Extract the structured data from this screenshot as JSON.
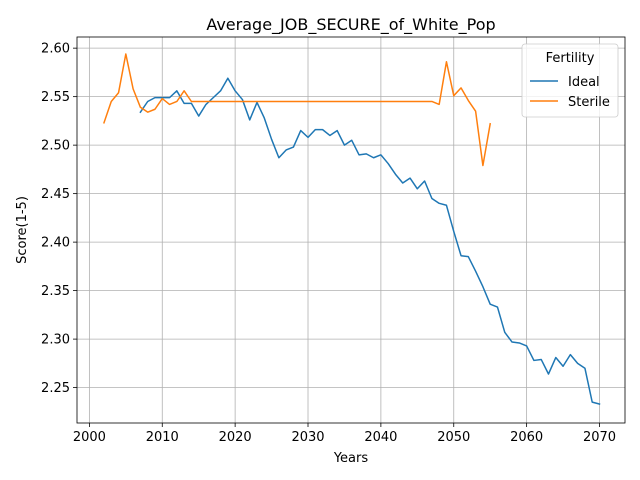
{
  "chart_data": {
    "type": "line",
    "title": "Average_JOB_SECURE_of_White_Pop",
    "xlabel": "Years",
    "ylabel": "Score(1-5)",
    "xlim": [
      1998.3,
      2073.5
    ],
    "ylim": [
      2.2135,
      2.6115
    ],
    "xticks": [
      2000,
      2010,
      2020,
      2030,
      2040,
      2050,
      2060,
      2070
    ],
    "yticks": [
      2.25,
      2.3,
      2.35,
      2.4,
      2.45,
      2.5,
      2.55,
      2.6
    ],
    "xtick_labels": [
      "2000",
      "2010",
      "2020",
      "2030",
      "2040",
      "2050",
      "2060",
      "2070"
    ],
    "ytick_labels": [
      "2.25",
      "2.30",
      "2.35",
      "2.40",
      "2.45",
      "2.50",
      "2.55",
      "2.60"
    ],
    "grid": true,
    "legend": {
      "title": "Fertility",
      "placement": "top-right"
    },
    "series": [
      {
        "name": "Ideal",
        "color": "#1f77b4",
        "x": [
          2007,
          2008,
          2009,
          2010,
          2011,
          2012,
          2013,
          2014,
          2015,
          2016,
          2017,
          2018,
          2019,
          2020,
          2021,
          2022,
          2023,
          2024,
          2025,
          2026,
          2027,
          2028,
          2029,
          2030,
          2031,
          2032,
          2033,
          2034,
          2035,
          2036,
          2037,
          2038,
          2039,
          2040,
          2041,
          2042,
          2043,
          2044,
          2045,
          2046,
          2047,
          2048,
          2049,
          2050,
          2051,
          2052,
          2053,
          2054,
          2055,
          2056,
          2057,
          2058,
          2059,
          2060,
          2061,
          2062,
          2063,
          2064,
          2065,
          2066,
          2067,
          2068,
          2069,
          2070
        ],
        "y": [
          2.534,
          2.545,
          2.549,
          2.549,
          2.549,
          2.556,
          2.543,
          2.543,
          2.53,
          2.542,
          2.549,
          2.556,
          2.569,
          2.556,
          2.547,
          2.526,
          2.544,
          2.528,
          2.506,
          2.487,
          2.495,
          2.498,
          2.515,
          2.508,
          2.516,
          2.516,
          2.51,
          2.515,
          2.5,
          2.505,
          2.49,
          2.491,
          2.487,
          2.49,
          2.481,
          2.47,
          2.461,
          2.466,
          2.455,
          2.463,
          2.445,
          2.44,
          2.438,
          2.411,
          2.386,
          2.385,
          2.37,
          2.354,
          2.336,
          2.333,
          2.307,
          2.297,
          2.296,
          2.293,
          2.278,
          2.279,
          2.264,
          2.281,
          2.272,
          2.284,
          2.275,
          2.27,
          2.235,
          2.233
        ]
      },
      {
        "name": "Sterile",
        "color": "#ff7f0e",
        "x": [
          2002,
          2003,
          2004,
          2005,
          2006,
          2007,
          2008,
          2009,
          2010,
          2011,
          2012,
          2013,
          2014,
          2015,
          2016,
          2017,
          2018,
          2019,
          2020,
          2021,
          2022,
          2023,
          2024,
          2025,
          2026,
          2027,
          2028,
          2029,
          2030,
          2031,
          2032,
          2033,
          2034,
          2035,
          2036,
          2037,
          2038,
          2039,
          2040,
          2041,
          2042,
          2043,
          2044,
          2045,
          2046,
          2047,
          2048,
          2049,
          2050,
          2051,
          2052,
          2053,
          2054,
          2055
        ],
        "y": [
          2.523,
          2.545,
          2.554,
          2.594,
          2.558,
          2.539,
          2.534,
          2.537,
          2.548,
          2.542,
          2.545,
          2.556,
          2.545,
          2.545,
          2.545,
          2.545,
          2.545,
          2.545,
          2.545,
          2.545,
          2.545,
          2.545,
          2.545,
          2.545,
          2.545,
          2.545,
          2.545,
          2.545,
          2.545,
          2.545,
          2.545,
          2.545,
          2.545,
          2.545,
          2.545,
          2.545,
          2.545,
          2.545,
          2.545,
          2.545,
          2.545,
          2.545,
          2.545,
          2.545,
          2.545,
          2.545,
          2.542,
          2.586,
          2.551,
          2.559,
          2.546,
          2.535,
          2.479,
          2.522
        ]
      }
    ]
  }
}
